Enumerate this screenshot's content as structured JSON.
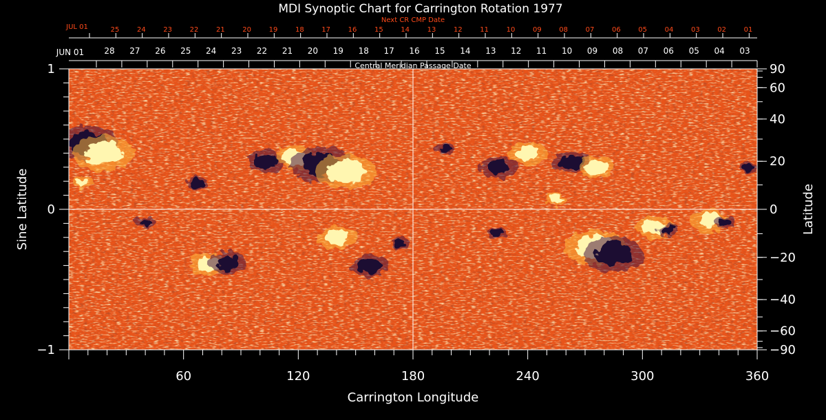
{
  "chart_data": {
    "type": "heatmap",
    "title": "MDI Synoptic Chart for Carrington Rotation 1977",
    "xlabel": "Carrington Longitude",
    "ylabel_left": "Sine Latitude",
    "ylabel_right": "Latitude",
    "top_axis_label": "Central Meridian Passage Date",
    "top2_axis_label": "Next CR CMP Date",
    "xlim": [
      0,
      360
    ],
    "ylim": [
      -1,
      1
    ],
    "x_ticks": [
      60,
      120,
      180,
      240,
      300,
      360
    ],
    "y_ticks_left": [
      {
        "value": 1,
        "label": "1"
      },
      {
        "value": 0,
        "label": "0"
      },
      {
        "value": -1,
        "label": "−1"
      }
    ],
    "latitude_ticks": [
      90,
      60,
      40,
      20,
      0,
      -20,
      -40,
      -60,
      -90
    ],
    "latitude_tick_labels": [
      "90",
      "60",
      "40",
      "20",
      "0",
      "−20",
      "−40",
      "−60",
      "−90"
    ],
    "cmp_month_label": "JUN 01",
    "cmp_dates": [
      "28",
      "27",
      "26",
      "25",
      "24",
      "23",
      "22",
      "21",
      "20",
      "19",
      "18",
      "17",
      "16",
      "15",
      "14",
      "13",
      "12",
      "11",
      "10",
      "09",
      "08",
      "07",
      "06",
      "05",
      "04",
      "03"
    ],
    "next_cmp_month_label": "JUL 01",
    "next_cmp_dates": [
      "25",
      "24",
      "23",
      "22",
      "21",
      "20",
      "19",
      "18",
      "17",
      "16",
      "15",
      "14",
      "13",
      "12",
      "11",
      "10",
      "09",
      "08",
      "07",
      "06",
      "05",
      "04",
      "03",
      "02",
      "01"
    ],
    "colors": {
      "background": "#000000",
      "axes": "#ffffff",
      "next_rotation_axis": "#ff4a1a",
      "map_base": "#e8541a",
      "positive_polarity": "#fff6b0",
      "negative_polarity": "#1a0c33"
    },
    "active_regions": [
      {
        "polarity": "negative",
        "lon": 10,
        "lat": 0.47,
        "size": "large"
      },
      {
        "polarity": "positive",
        "lon": 18,
        "lat": 0.4,
        "size": "large"
      },
      {
        "polarity": "positive",
        "lon": 7,
        "lat": 0.19,
        "size": "small"
      },
      {
        "polarity": "negative",
        "lon": 67,
        "lat": 0.19,
        "size": "small"
      },
      {
        "polarity": "negative",
        "lon": 103,
        "lat": 0.34,
        "size": "medium"
      },
      {
        "polarity": "positive",
        "lon": 118,
        "lat": 0.37,
        "size": "medium"
      },
      {
        "polarity": "negative",
        "lon": 132,
        "lat": 0.32,
        "size": "large"
      },
      {
        "polarity": "positive",
        "lon": 145,
        "lat": 0.27,
        "size": "large"
      },
      {
        "polarity": "negative",
        "lon": 40,
        "lat": -0.09,
        "size": "small"
      },
      {
        "polarity": "positive",
        "lon": 73,
        "lat": -0.39,
        "size": "medium"
      },
      {
        "polarity": "negative",
        "lon": 83,
        "lat": -0.38,
        "size": "medium"
      },
      {
        "polarity": "positive",
        "lon": 140,
        "lat": -0.2,
        "size": "medium"
      },
      {
        "polarity": "negative",
        "lon": 157,
        "lat": -0.4,
        "size": "medium"
      },
      {
        "polarity": "negative",
        "lon": 173,
        "lat": -0.24,
        "size": "small"
      },
      {
        "polarity": "negative",
        "lon": 197,
        "lat": 0.43,
        "size": "small"
      },
      {
        "polarity": "negative",
        "lon": 225,
        "lat": 0.3,
        "size": "medium"
      },
      {
        "polarity": "positive",
        "lon": 240,
        "lat": 0.4,
        "size": "medium"
      },
      {
        "polarity": "negative",
        "lon": 263,
        "lat": 0.33,
        "size": "medium"
      },
      {
        "polarity": "positive",
        "lon": 276,
        "lat": 0.3,
        "size": "medium"
      },
      {
        "polarity": "positive",
        "lon": 255,
        "lat": 0.07,
        "size": "small"
      },
      {
        "polarity": "negative",
        "lon": 224,
        "lat": -0.17,
        "size": "small"
      },
      {
        "polarity": "positive",
        "lon": 275,
        "lat": -0.27,
        "size": "large"
      },
      {
        "polarity": "negative",
        "lon": 285,
        "lat": -0.32,
        "size": "large"
      },
      {
        "polarity": "positive",
        "lon": 306,
        "lat": -0.13,
        "size": "medium"
      },
      {
        "polarity": "negative",
        "lon": 313,
        "lat": -0.15,
        "size": "small"
      },
      {
        "polarity": "positive",
        "lon": 335,
        "lat": -0.08,
        "size": "medium"
      },
      {
        "polarity": "negative",
        "lon": 343,
        "lat": -0.09,
        "size": "small"
      },
      {
        "polarity": "negative",
        "lon": 355,
        "lat": 0.3,
        "size": "small"
      }
    ]
  }
}
